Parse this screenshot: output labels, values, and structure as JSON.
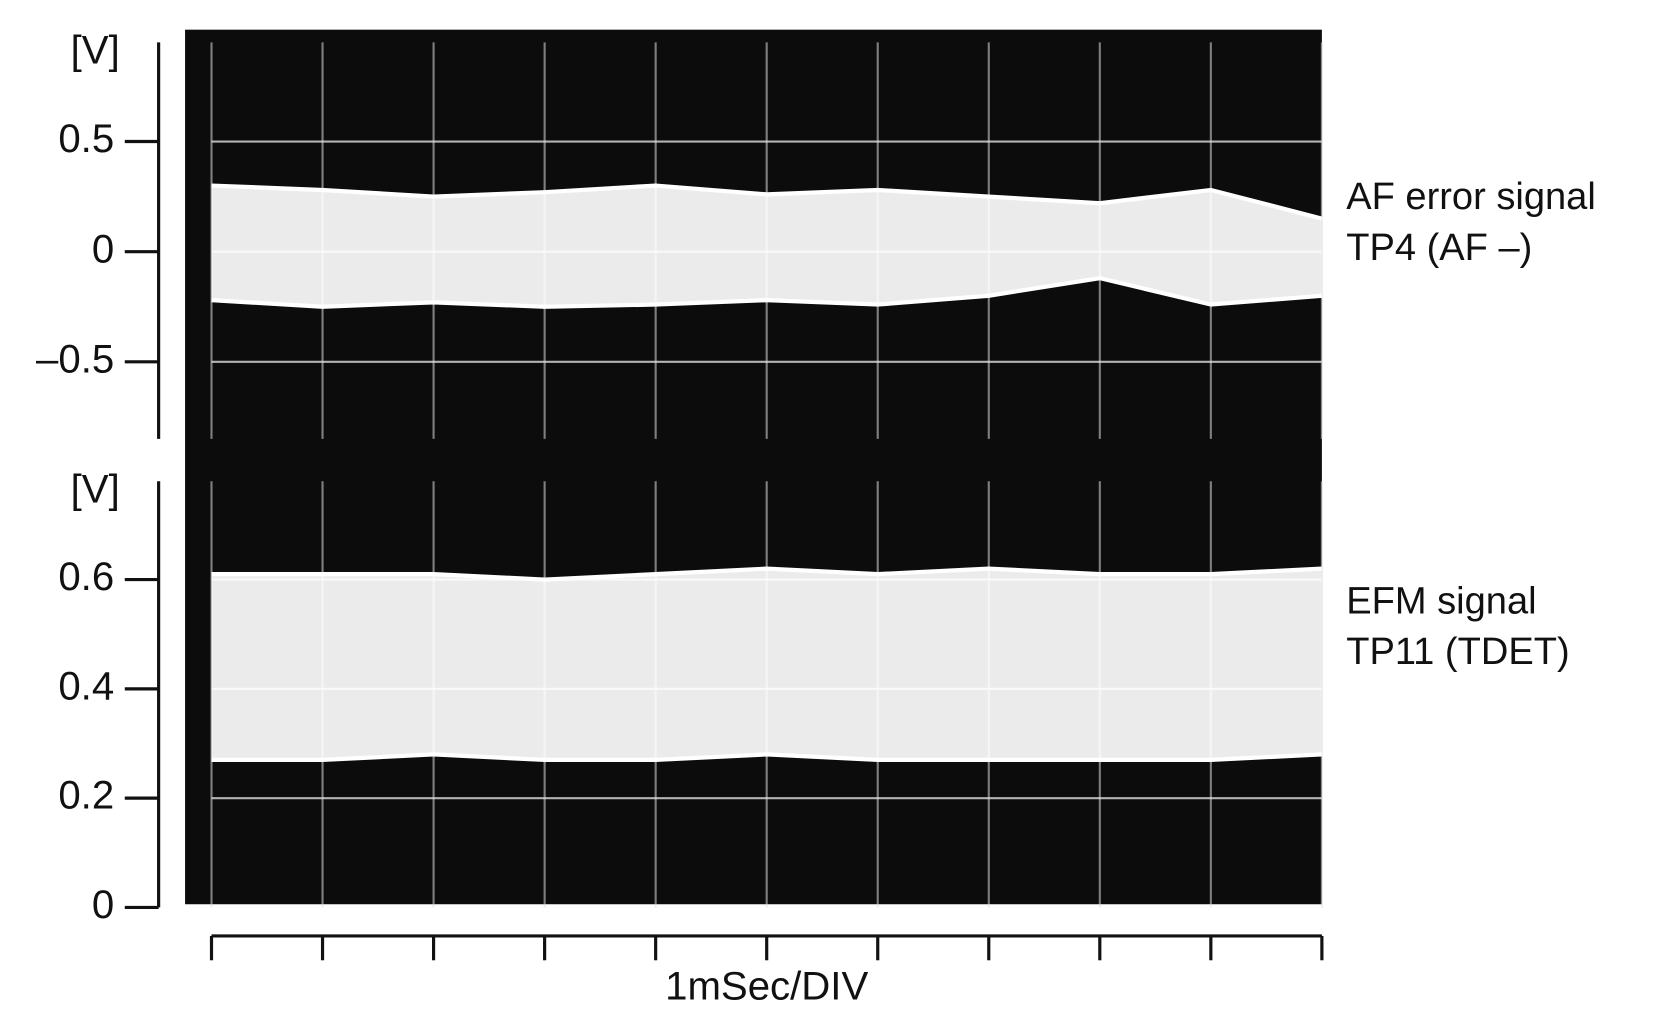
{
  "chart_data": [
    {
      "type": "band",
      "ylabel": "[V]",
      "annotations": [
        "AF error signal",
        "TP4 (AF –)"
      ],
      "x": [
        0,
        1,
        2,
        3,
        4,
        5,
        6,
        7,
        8,
        9,
        10
      ],
      "upper": [
        0.3,
        0.28,
        0.25,
        0.27,
        0.3,
        0.26,
        0.28,
        0.25,
        0.22,
        0.28,
        0.15
      ],
      "lower": [
        -0.22,
        -0.25,
        -0.23,
        -0.25,
        -0.24,
        -0.22,
        -0.24,
        -0.2,
        -0.12,
        -0.24,
        -0.2
      ],
      "color": "#ffffff",
      "xlim": [
        0,
        10
      ],
      "xticks": [
        0,
        1,
        2,
        3,
        4,
        5,
        6,
        7,
        8,
        9,
        10
      ],
      "ylim": [
        -0.85,
        0.95
      ],
      "yticks": [
        {
          "value": -0.5,
          "label": "–0.5"
        },
        0,
        0.5
      ],
      "grid": true
    },
    {
      "type": "band",
      "ylabel": "[V]",
      "annotations": [
        "EFM signal",
        "TP11 (TDET)"
      ],
      "x": [
        0,
        1,
        2,
        3,
        4,
        5,
        6,
        7,
        8,
        9,
        10
      ],
      "upper": [
        0.61,
        0.61,
        0.61,
        0.6,
        0.61,
        0.62,
        0.61,
        0.62,
        0.61,
        0.61,
        0.62
      ],
      "lower": [
        0.27,
        0.27,
        0.28,
        0.27,
        0.27,
        0.28,
        0.27,
        0.27,
        0.27,
        0.27,
        0.28
      ],
      "color": "#ffffff",
      "xlabel": "1mSec/DIV",
      "xlim": [
        0,
        10
      ],
      "xticks": [
        0,
        1,
        2,
        3,
        4,
        5,
        6,
        7,
        8,
        9,
        10
      ],
      "ylim": [
        0,
        0.78
      ],
      "yticks": [
        0,
        0.2,
        0.4,
        0.6
      ],
      "grid": true
    }
  ]
}
